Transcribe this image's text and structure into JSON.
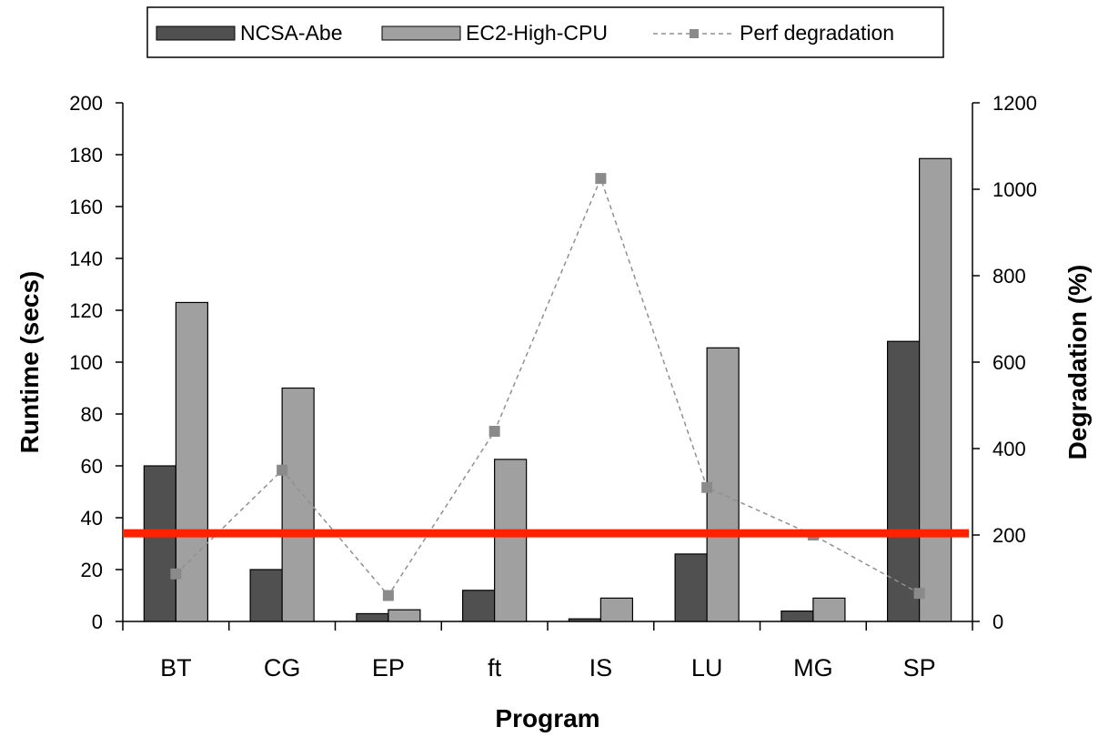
{
  "chart_data": {
    "type": "bar",
    "categories": [
      "BT",
      "CG",
      "EP",
      "ft",
      "IS",
      "LU",
      "MG",
      "SP"
    ],
    "series": [
      {
        "name": "NCSA-Abe",
        "axis": "left",
        "type": "bar",
        "color": "#505050",
        "values": [
          60,
          20,
          3,
          12,
          1,
          26,
          4,
          108
        ]
      },
      {
        "name": "EC2-High-CPU",
        "axis": "left",
        "type": "bar",
        "color": "#a0a0a0",
        "values": [
          123,
          90,
          4.5,
          62.5,
          9,
          105.5,
          9,
          178.5
        ]
      },
      {
        "name": "Perf degradation",
        "axis": "right",
        "type": "line",
        "color": "#909090",
        "values": [
          110,
          350,
          60,
          440,
          1025,
          310,
          200,
          65
        ]
      }
    ],
    "xlabel": "Program",
    "ylabel": "Runtime (secs)",
    "y2label": "Degradation (%)",
    "ylim": [
      0,
      200
    ],
    "y2lim": [
      0,
      1200
    ],
    "yticks": [
      "0",
      "20",
      "40",
      "60",
      "80",
      "100",
      "120",
      "140",
      "160",
      "180",
      "200"
    ],
    "y2ticks": [
      "0",
      "200",
      "400",
      "600",
      "800",
      "1000",
      "1200"
    ],
    "grid": false,
    "legend_position": "top-center",
    "reference_line": {
      "y": 34,
      "color": "#ff2200"
    }
  }
}
